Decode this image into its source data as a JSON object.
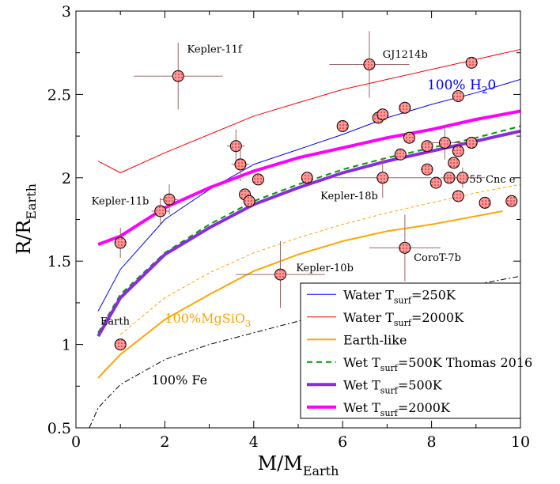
{
  "chart_data": {
    "type": "line",
    "xlabel": {
      "main": "M/M",
      "sub": "Earth"
    },
    "ylabel": {
      "main": "R/R",
      "sub": "Earth"
    },
    "xlim": [
      0,
      10
    ],
    "ylim": [
      0.5,
      3
    ],
    "x_ticks": [
      0,
      2,
      4,
      6,
      8,
      10
    ],
    "y_ticks": [
      0.5,
      1,
      1.5,
      2,
      2.5,
      3
    ],
    "x_tick_labels": [
      "0",
      "2",
      "4",
      "6",
      "8",
      "10"
    ],
    "y_tick_labels": [
      "0.5",
      "1",
      "1.5",
      "2",
      "2.5",
      "3"
    ],
    "grid": false,
    "legend_position": "bottom-right",
    "series": [
      {
        "name": "Water T_surf=250K",
        "legend": {
          "main": "Water T",
          "sub": "surf",
          "tail": "=250K"
        },
        "color": "#0000ff",
        "width": 1,
        "dash": "",
        "points": [
          [
            0.5,
            1.2
          ],
          [
            1,
            1.45
          ],
          [
            2,
            1.75
          ],
          [
            3,
            1.93
          ],
          [
            4,
            2.08
          ],
          [
            5,
            2.17
          ],
          [
            6,
            2.26
          ],
          [
            7,
            2.36
          ],
          [
            8,
            2.44
          ],
          [
            9,
            2.51
          ],
          [
            10,
            2.59
          ]
        ]
      },
      {
        "name": "Water T_surf=2000K",
        "legend": {
          "main": "Water T",
          "sub": "surf",
          "tail": "=2000K"
        },
        "color": "#ff0000",
        "width": 1,
        "dash": "",
        "points": [
          [
            0.5,
            2.1
          ],
          [
            1,
            2.03
          ],
          [
            2,
            2.15
          ],
          [
            3,
            2.26
          ],
          [
            4,
            2.37
          ],
          [
            5,
            2.45
          ],
          [
            6,
            2.53
          ],
          [
            7,
            2.59
          ],
          [
            8,
            2.65
          ],
          [
            9,
            2.71
          ],
          [
            10,
            2.77
          ]
        ]
      },
      {
        "name": "Earth-like",
        "legend": {
          "main": "Earth-like",
          "sub": "",
          "tail": ""
        },
        "color": "#ffa500",
        "width": 2,
        "dash": "",
        "points": [
          [
            0.5,
            0.8
          ],
          [
            1,
            0.94
          ],
          [
            2,
            1.15
          ],
          [
            3,
            1.3
          ],
          [
            4,
            1.44
          ],
          [
            5,
            1.54
          ],
          [
            6,
            1.62
          ],
          [
            7,
            1.68
          ],
          [
            8,
            1.72
          ],
          [
            9,
            1.77
          ],
          [
            9.6,
            1.8
          ]
        ]
      },
      {
        "name": "Wet T_surf=500K Thomas 2016",
        "legend": {
          "main": "Wet T",
          "sub": "surf",
          "tail": "=500K Thomas 2016"
        },
        "color": "#009900",
        "width": 2,
        "dash": "7,5",
        "points": [
          [
            0.5,
            1.07
          ],
          [
            1,
            1.3
          ],
          [
            2,
            1.55
          ],
          [
            3,
            1.72
          ],
          [
            4,
            1.86
          ],
          [
            5,
            1.96
          ],
          [
            6,
            2.05
          ],
          [
            7,
            2.12
          ],
          [
            8,
            2.18
          ],
          [
            9,
            2.24
          ],
          [
            10,
            2.31
          ]
        ]
      },
      {
        "name": "Wet T_surf=500K",
        "legend": {
          "main": "Wet T",
          "sub": "surf",
          "tail": "=500K"
        },
        "color": "#8a2be2",
        "width": 4,
        "dash": "",
        "points": [
          [
            0.5,
            1.05
          ],
          [
            1,
            1.28
          ],
          [
            2,
            1.54
          ],
          [
            3,
            1.7
          ],
          [
            4,
            1.84
          ],
          [
            5,
            1.94
          ],
          [
            6,
            2.03
          ],
          [
            7,
            2.1
          ],
          [
            8,
            2.16
          ],
          [
            9,
            2.22
          ],
          [
            10,
            2.28
          ]
        ]
      },
      {
        "name": "Wet T_surf=2000K",
        "legend": {
          "main": "Wet T",
          "sub": "surf",
          "tail": "=2000K"
        },
        "color": "#ff00ff",
        "width": 4,
        "dash": "",
        "points": [
          [
            0.5,
            1.6
          ],
          [
            1,
            1.65
          ],
          [
            2,
            1.82
          ],
          [
            3,
            1.94
          ],
          [
            4,
            2.04
          ],
          [
            5,
            2.12
          ],
          [
            6,
            2.18
          ],
          [
            7,
            2.24
          ],
          [
            8,
            2.29
          ],
          [
            9,
            2.35
          ],
          [
            10,
            2.4
          ]
        ]
      }
    ],
    "reference_lines": [
      {
        "name": "100% MgSiO3",
        "color": "#ffa500",
        "width": 1,
        "dash": "4,3",
        "points": [
          [
            1,
            1.06
          ],
          [
            2,
            1.28
          ],
          [
            3,
            1.43
          ],
          [
            4,
            1.55
          ],
          [
            5,
            1.64
          ],
          [
            6,
            1.72
          ],
          [
            7,
            1.79
          ],
          [
            8,
            1.85
          ],
          [
            9,
            1.91
          ],
          [
            10,
            1.96
          ]
        ]
      },
      {
        "name": "100% Fe",
        "color": "#000000",
        "width": 1,
        "dash": "7,3,2,3",
        "points": [
          [
            0.3,
            0.5
          ],
          [
            0.5,
            0.62
          ],
          [
            1,
            0.76
          ],
          [
            2,
            0.91
          ],
          [
            3,
            1.0
          ],
          [
            4,
            1.07
          ],
          [
            5,
            1.14
          ],
          [
            6,
            1.2
          ],
          [
            7,
            1.26
          ],
          [
            8,
            1.31
          ],
          [
            9,
            1.36
          ],
          [
            10,
            1.41
          ]
        ]
      }
    ],
    "observed_planets": {
      "marker_color": "#ff9999",
      "points": [
        {
          "x": 1.0,
          "y": 1.0
        },
        {
          "x": 1.0,
          "y": 1.61,
          "xerr": 0.1,
          "yerr": 0.09
        },
        {
          "x": 1.9,
          "y": 1.8,
          "xerr": 0.2,
          "yerr": 0.08
        },
        {
          "x": 2.1,
          "y": 1.87,
          "xerr": 0.2,
          "yerr": 0.09
        },
        {
          "x": 2.3,
          "y": 2.61,
          "xerr": 1.0,
          "yerr": 0.2
        },
        {
          "x": 3.6,
          "y": 2.19,
          "xerr": 0.2,
          "yerr": 0.1
        },
        {
          "x": 3.7,
          "y": 2.08,
          "xerr": 0.2,
          "yerr": 0.1
        },
        {
          "x": 3.8,
          "y": 1.9
        },
        {
          "x": 3.9,
          "y": 1.86
        },
        {
          "x": 4.1,
          "y": 1.99
        },
        {
          "x": 4.6,
          "y": 1.42,
          "xerr": 1.0,
          "yerr": 0.2
        },
        {
          "x": 5.2,
          "y": 2.0
        },
        {
          "x": 6.0,
          "y": 2.31
        },
        {
          "x": 6.6,
          "y": 2.68,
          "xerr": 0.9,
          "yerr": 0.2
        },
        {
          "x": 6.8,
          "y": 2.36
        },
        {
          "x": 6.9,
          "y": 2.38
        },
        {
          "x": 6.9,
          "y": 2.0,
          "xerr": 1.1,
          "yerr": 0.12
        },
        {
          "x": 7.3,
          "y": 2.14
        },
        {
          "x": 7.4,
          "y": 2.42
        },
        {
          "x": 7.4,
          "y": 1.58,
          "xerr": 0.8,
          "yerr": 0.2
        },
        {
          "x": 7.5,
          "y": 2.24
        },
        {
          "x": 7.9,
          "y": 2.19
        },
        {
          "x": 7.9,
          "y": 2.05
        },
        {
          "x": 8.1,
          "y": 1.97
        },
        {
          "x": 8.3,
          "y": 2.21,
          "xerr": 0.4,
          "yerr": 0.1
        },
        {
          "x": 8.4,
          "y": 2.0
        },
        {
          "x": 8.5,
          "y": 2.09
        },
        {
          "x": 8.6,
          "y": 2.49
        },
        {
          "x": 8.6,
          "y": 2.16
        },
        {
          "x": 8.6,
          "y": 1.89
        },
        {
          "x": 8.7,
          "y": 2.0,
          "xerr": 0.5,
          "yerr": 0.06
        },
        {
          "x": 8.9,
          "y": 2.69
        },
        {
          "x": 8.9,
          "y": 2.21
        },
        {
          "x": 9.2,
          "y": 1.85
        },
        {
          "x": 9.8,
          "y": 1.86
        }
      ]
    },
    "annotations": [
      {
        "id": "kepler-11f",
        "text": "Kepler-11f",
        "x": 2.5,
        "y": 2.75,
        "color": "#000000",
        "size": 13
      },
      {
        "id": "gj1214b",
        "text": "GJ1214b",
        "x": 6.9,
        "y": 2.72,
        "color": "#000000",
        "size": 13
      },
      {
        "id": "kepler-11b",
        "text": "Kepler-11b",
        "x": 0.35,
        "y": 1.84,
        "color": "#000000",
        "size": 13
      },
      {
        "id": "kepler-18b",
        "text": "Kepler-18b",
        "x": 5.5,
        "y": 1.87,
        "color": "#000000",
        "size": 13
      },
      {
        "id": "55-cnc-e",
        "text": "55 Cnc e",
        "x": 8.85,
        "y": 1.97,
        "color": "#000000",
        "size": 13
      },
      {
        "id": "kepler-10b",
        "text": "Kepler-10b",
        "x": 4.95,
        "y": 1.44,
        "color": "#000000",
        "size": 13
      },
      {
        "id": "corot-7b",
        "text": "CoroT-7b",
        "x": 7.6,
        "y": 1.5,
        "color": "#000000",
        "size": 13
      },
      {
        "id": "earth",
        "text": "Earth",
        "x": 0.55,
        "y": 1.12,
        "color": "#000000",
        "size": 13
      },
      {
        "id": "fe",
        "text": "100% Fe",
        "x": 1.7,
        "y": 0.76,
        "color": "#000000",
        "size": 16
      }
    ],
    "label_h2o": {
      "text": "100% H",
      "sub": "2",
      "tail": "0",
      "color": "#0000ff",
      "x": 7.9,
      "y": 2.53
    },
    "label_mgsio3": {
      "text": "100%MgSiO",
      "sub": "3",
      "tail": "",
      "color": "#ffa500",
      "x": 2.0,
      "y": 1.13
    }
  }
}
